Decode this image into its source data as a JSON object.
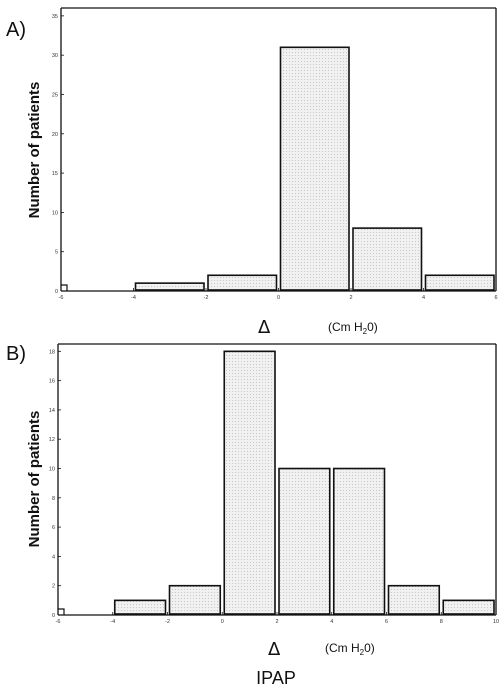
{
  "caption": "IPAP",
  "chart_data": [
    {
      "type": "bar",
      "panel": "A)",
      "xlabel": "Δ",
      "xunit_main": "(Cm H",
      "xunit_sub": "2",
      "xunit_end": "0)",
      "ylabel": "Number of patients",
      "xlim": [
        -6,
        6
      ],
      "ylim": [
        0,
        36
      ],
      "xticks": [
        -6,
        -4,
        -2,
        0,
        2,
        4,
        6
      ],
      "yticks": [
        0,
        5,
        10,
        15,
        20,
        25,
        30,
        35
      ],
      "bins": [
        [
          -4,
          -2
        ],
        [
          -2,
          0
        ],
        [
          0,
          2
        ],
        [
          2,
          4
        ],
        [
          4,
          6
        ]
      ],
      "values": [
        1,
        2,
        31,
        8,
        2
      ],
      "grid": false
    },
    {
      "type": "bar",
      "panel": "B)",
      "xlabel": "Δ",
      "xunit_main": "(Cm H",
      "xunit_sub": "2",
      "xunit_end": "0)",
      "ylabel": "Number of patients",
      "xlim": [
        -6,
        10
      ],
      "ylim": [
        0,
        18.5
      ],
      "xticks": [
        -6,
        -4,
        -2,
        0,
        2,
        4,
        6,
        8,
        10
      ],
      "yticks": [
        0,
        2,
        4,
        6,
        8,
        10,
        12,
        14,
        16,
        18
      ],
      "bins": [
        [
          -4,
          -2
        ],
        [
          -2,
          0
        ],
        [
          0,
          2
        ],
        [
          2,
          4
        ],
        [
          4,
          6
        ],
        [
          6,
          8
        ],
        [
          8,
          10
        ]
      ],
      "values": [
        1,
        2,
        18,
        10,
        10,
        2,
        1
      ],
      "grid": false
    }
  ]
}
